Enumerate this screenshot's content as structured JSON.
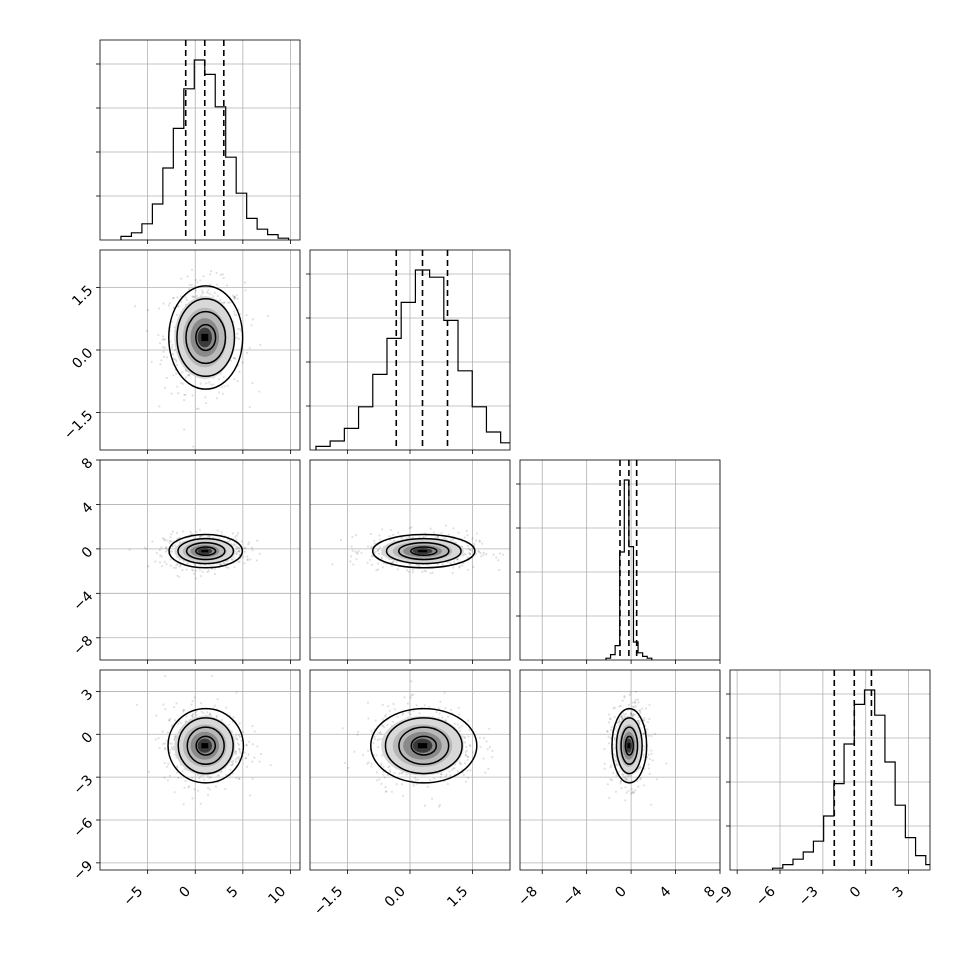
{
  "chart_data": {
    "type": "corner",
    "variables": [
      {
        "range": [
          -10,
          11
        ],
        "ticks": [
          -5,
          0,
          5,
          10
        ],
        "tick_labels": [
          "−5",
          "0",
          "5",
          "10"
        ],
        "median": 1.0,
        "q16": -1.0,
        "q84": 3.0,
        "spread": 2.0
      },
      {
        "range": [
          -2.4,
          2.4
        ],
        "ticks": [
          -1.5,
          0.0,
          1.5
        ],
        "tick_labels": [
          "−1.5",
          "0.0",
          "1.5"
        ],
        "median": 0.3,
        "q16": -0.33,
        "q84": 0.9,
        "spread": 0.62
      },
      {
        "range": [
          -10,
          8
        ],
        "ticks": [
          -8,
          -4,
          0,
          4,
          8
        ],
        "tick_labels": [
          "−8",
          "−4",
          "0",
          "4",
          "8"
        ],
        "median": -0.2,
        "q16": -1.0,
        "q84": 0.5,
        "spread": 0.75
      },
      {
        "range": [
          -9.5,
          4.5
        ],
        "ticks": [
          -9,
          -6,
          -3,
          0,
          3
        ],
        "tick_labels": [
          "−9",
          "−6",
          "−3",
          "0",
          "3"
        ],
        "median": -0.8,
        "q16": -2.2,
        "q84": 0.4,
        "spread": 1.3
      }
    ],
    "histograms": [
      {
        "variable": 0,
        "bins": 20,
        "counts": [
          2,
          4,
          9,
          20,
          40,
          62,
          84,
          100,
          92,
          74,
          46,
          26,
          12,
          6,
          3,
          1
        ]
      },
      {
        "variable": 1,
        "bins": 20,
        "counts": [
          2,
          5,
          12,
          24,
          42,
          62,
          82,
          100,
          96,
          72,
          44,
          24,
          10,
          4,
          2
        ]
      },
      {
        "variable": 2,
        "bins": 20,
        "counts": [
          1,
          3,
          8,
          60,
          100,
          63,
          10,
          4,
          2,
          1
        ]
      },
      {
        "variable": 3,
        "bins": 20,
        "counts": [
          1,
          3,
          6,
          10,
          16,
          30,
          48,
          70,
          92,
          100,
          86,
          60,
          36,
          18,
          8,
          3
        ]
      }
    ],
    "quantile_lines": "dashed 16/50/84 percent",
    "contour_levels": [
      0.5,
      1.0,
      1.5,
      2.0
    ],
    "scatter_points": 600,
    "grid": true
  }
}
